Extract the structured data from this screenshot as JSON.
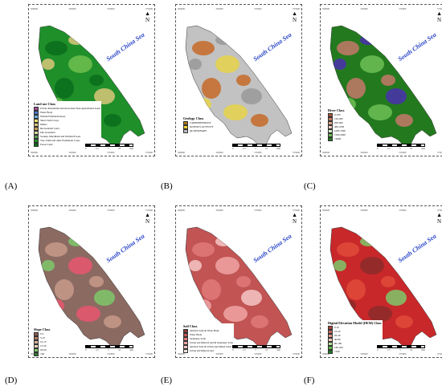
{
  "sea_label": "South China Sea",
  "north_label": "N",
  "panels": [
    {
      "id": "A",
      "label": "(A)",
      "legend": {
        "title": "Land use Class",
        "items": [
          {
            "label": "Urban, Residential and Associated Non-Agricultural Areas",
            "color": "#9b4f96"
          },
          {
            "label": "Water Body",
            "color": "#4a78c8"
          },
          {
            "label": "Wetland Wetlands/Areas",
            "color": "#6bb3e0"
          },
          {
            "label": "Short-Term Crops",
            "color": "#f2e36b"
          },
          {
            "label": "Others",
            "color": "#d9c77a"
          },
          {
            "label": "Recreational Land",
            "color": "#c89a5a"
          },
          {
            "label": "Idle Grassland",
            "color": "#d7d9a0"
          },
          {
            "label": "Swamp, Marshland and Wetland Forest",
            "color": "#5aa055"
          },
          {
            "label": "Tree, Palm and other Permanent Crops",
            "color": "#1f8f2a"
          },
          {
            "label": "Forest Land",
            "color": "#0b6d1b"
          }
        ]
      },
      "map_colors": [
        "#1f8f2a",
        "#0b6d1b",
        "#6fbf4e",
        "#d9c77a"
      ],
      "ticks_top": [
        "560000",
        "565000",
        "570000",
        "575000"
      ],
      "ticks_bottom": [
        "560000",
        "565000",
        "570000",
        "575000"
      ],
      "scale_labels": [
        "0",
        "2.5",
        "5",
        "10",
        "Km"
      ]
    },
    {
      "id": "B",
      "label": "(B)",
      "legend": {
        "title": "Geology Class",
        "items": [
          {
            "label": "CARBONIFEROUS",
            "color": "#a8741a"
          },
          {
            "label": "IGNEOUS ACTIVITY",
            "color": "#f2d230"
          },
          {
            "label": "QUATERNARY",
            "color": "#bdbdbd"
          }
        ]
      },
      "map_colors": [
        "#c2c2c2",
        "#c66a28",
        "#e6d44a",
        "#999999"
      ],
      "ticks_top": [
        "560000",
        "565000",
        "570000",
        "575000"
      ],
      "ticks_bottom": [
        "560000",
        "565000",
        "570000",
        "575000"
      ],
      "scale_labels": [
        "0",
        "2.5",
        "5",
        "10",
        "Km"
      ]
    },
    {
      "id": "C",
      "label": "(C)",
      "legend": {
        "title": "River Class",
        "items": [
          {
            "label": "0-100",
            "color": "#a4543a"
          },
          {
            "label": "100-200",
            "color": "#c47a5c"
          },
          {
            "label": "200-400",
            "color": "#e3a38a"
          },
          {
            "label": "400-1000",
            "color": "#f2d2c1"
          },
          {
            "label": "1000-1500",
            "color": "#d8eec8"
          },
          {
            "label": "1500-2000",
            "color": "#6dbf55"
          },
          {
            "label": ">2000",
            "color": "#237a1e"
          }
        ]
      },
      "map_colors": [
        "#237a1e",
        "#c4786a",
        "#6dbf55",
        "#4a2fb0"
      ],
      "ticks_top": [
        "560000",
        "565000",
        "570000",
        "575000"
      ],
      "ticks_bottom": [
        "560000",
        "565000",
        "570000",
        "575000"
      ],
      "scale_labels": [
        "0",
        "2.5",
        "5",
        "10",
        "Km"
      ]
    },
    {
      "id": "D",
      "label": "(D)",
      "legend": {
        "title": "Slope Class",
        "items": [
          {
            "label": "0-5",
            "color": "#8b5c4e"
          },
          {
            "label": "5-10",
            "color": "#b07b62"
          },
          {
            "label": "10-15",
            "color": "#d6b59e"
          },
          {
            "label": "15-20",
            "color": "#e8d6c0"
          },
          {
            "label": "20-60",
            "color": "#7ec86a"
          },
          {
            "label": ">60",
            "color": "#2a8a2a"
          }
        ]
      },
      "map_colors": [
        "#8b6a62",
        "#c89a8a",
        "#e8566e",
        "#7ec86a"
      ],
      "ticks_top": [
        "560000",
        "565000",
        "570000",
        "575000"
      ],
      "ticks_bottom": [
        "560000",
        "565000",
        "570000",
        "575000"
      ],
      "scale_labels": [
        "0",
        "2.5",
        "5",
        "10",
        "Km"
      ]
    },
    {
      "id": "E",
      "label": "(E)",
      "legend": {
        "title": "Soil Class",
        "items": [
          {
            "label": "Alluvial Soils & Water Body",
            "color": "#8a3b3b"
          },
          {
            "label": "Water Body",
            "color": "#c25454"
          },
          {
            "label": "Sedentary Soils",
            "color": "#e07a7a"
          },
          {
            "label": "Urban and Mixed Land & Sedentary Soils",
            "color": "#f0a3a3"
          },
          {
            "label": "Alluvial Soils & Urban and Mixed Land",
            "color": "#f6c7c7"
          },
          {
            "label": "Urban and Mixed Land",
            "color": "#fbe3e3"
          }
        ]
      },
      "map_colors": [
        "#c25454",
        "#e07a7a",
        "#f0a3a3",
        "#f6c7c7"
      ],
      "ticks_top": [
        "560000",
        "565000",
        "570000",
        "575000"
      ],
      "ticks_bottom": [
        "560000",
        "565000",
        "570000",
        "575000"
      ],
      "scale_labels": [
        "0",
        "2.5",
        "5",
        "10",
        "Km"
      ]
    },
    {
      "id": "F",
      "label": "(F)",
      "legend": {
        "title": "Digital Elevation Model (DEM) Class",
        "items": [
          {
            "label": "0-10",
            "color": "#a8453a"
          },
          {
            "label": "10-20",
            "color": "#c86b5e"
          },
          {
            "label": "20-40",
            "color": "#e39a8a"
          },
          {
            "label": "40-80",
            "color": "#f3cfc0"
          },
          {
            "label": "80-160",
            "color": "#b8e3a0"
          },
          {
            "label": "160-320",
            "color": "#5ebd4a"
          },
          {
            "label": ">320",
            "color": "#1f7a20"
          }
        ]
      },
      "map_colors": [
        "#c8282a",
        "#e04a3a",
        "#8b2a2a",
        "#7ec86a"
      ],
      "ticks_top": [
        "560000",
        "565000",
        "570000",
        "575000"
      ],
      "ticks_bottom": [
        "560000",
        "565000",
        "570000",
        "575000"
      ],
      "scale_labels": [
        "0",
        "2.5",
        "5",
        "10",
        "Km"
      ]
    }
  ]
}
